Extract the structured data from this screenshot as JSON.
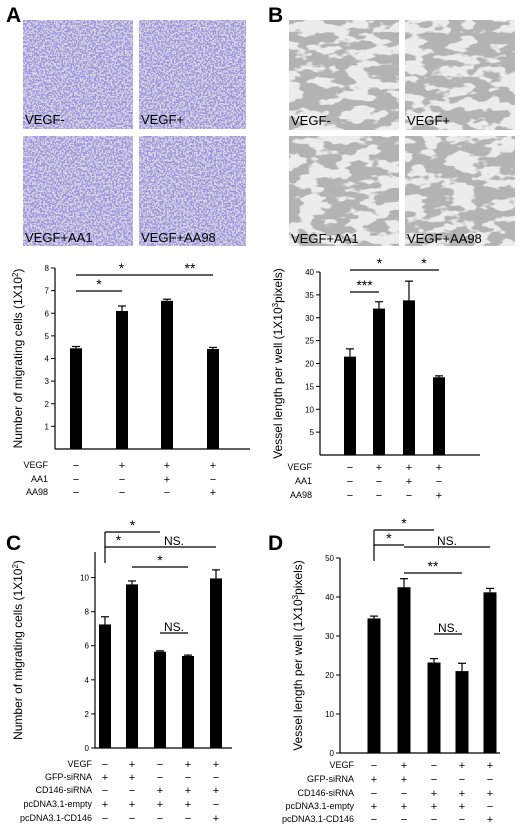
{
  "panels": {
    "A": {
      "letter": "A",
      "micrographs": [
        {
          "label": "VEGF-"
        },
        {
          "label": "VEGF+"
        },
        {
          "label": "VEGF+AA1"
        },
        {
          "label": "VEGF+AA98"
        }
      ],
      "ylabel": "Number of migrating cells (1X10",
      "ylabel_sup": "2",
      "ylabel_close": ")",
      "rows": [
        {
          "name": "VEGF",
          "signs": [
            "−",
            "+",
            "+",
            "+"
          ]
        },
        {
          "name": "AA1",
          "signs": [
            "−",
            "−",
            "+",
            "−"
          ]
        },
        {
          "name": "AA98",
          "signs": [
            "−",
            "−",
            "−",
            "+"
          ]
        }
      ],
      "sig": [
        {
          "text": "*",
          "from": 1,
          "to": 2
        },
        {
          "text": "*",
          "from": 1,
          "to": 3
        },
        {
          "text": "**",
          "from": 3,
          "to": 4
        }
      ]
    },
    "B": {
      "letter": "B",
      "micrographs": [
        {
          "label": "VEGF-"
        },
        {
          "label": "VEGF+"
        },
        {
          "label": "VEGF+AA1"
        },
        {
          "label": "VEGF+AA98"
        }
      ],
      "ylabel": "Vessel length per well (1X10",
      "ylabel_sup": "3",
      "ylabel_close": "pixels)",
      "rows": [
        {
          "name": "VEGF",
          "signs": [
            "−",
            "+",
            "+",
            "+"
          ]
        },
        {
          "name": "AA1",
          "signs": [
            "−",
            "−",
            "+",
            "−"
          ]
        },
        {
          "name": "AA98",
          "signs": [
            "−",
            "−",
            "−",
            "+"
          ]
        }
      ],
      "sig": [
        {
          "text": "***",
          "from": 1,
          "to": 2
        },
        {
          "text": "*",
          "from": 1,
          "to": 3
        },
        {
          "text": "*",
          "from": 3,
          "to": 4
        }
      ]
    },
    "C": {
      "letter": "C",
      "ylabel": "Number of migrating cells (1X10",
      "ylabel_sup": "2",
      "ylabel_close": ")",
      "rows": [
        {
          "name": "VEGF",
          "signs": [
            "−",
            "+",
            "−",
            "+",
            "+"
          ]
        },
        {
          "name": "GFP-siRNA",
          "signs": [
            "+",
            "+",
            "−",
            "−",
            "−"
          ]
        },
        {
          "name": "CD146-siRNA",
          "signs": [
            "−",
            "−",
            "+",
            "+",
            "+"
          ]
        },
        {
          "name": "pcDNA3.1-empty",
          "signs": [
            "+",
            "+",
            "+",
            "+",
            "−"
          ]
        },
        {
          "name": "pcDNA3.1-CD146",
          "signs": [
            "−",
            "−",
            "−",
            "−",
            "+"
          ]
        }
      ],
      "sig": [
        {
          "text": "*",
          "from": 1,
          "to": 2
        },
        {
          "text": "*",
          "from": 1,
          "to": 3
        },
        {
          "text": "*",
          "from": 2,
          "to": 4
        },
        {
          "text": "NS.",
          "from": 2,
          "to": 5
        },
        {
          "text": "NS.",
          "from": 3,
          "to": 4
        }
      ]
    },
    "D": {
      "letter": "D",
      "ylabel": "Vessel length per well (1X10",
      "ylabel_sup": "3",
      "ylabel_close": "pixels)",
      "rows": [
        {
          "name": "VEGF",
          "signs": [
            "−",
            "+",
            "−",
            "+",
            "+"
          ]
        },
        {
          "name": "GFP-siRNA",
          "signs": [
            "+",
            "+",
            "−",
            "−",
            "−"
          ]
        },
        {
          "name": "CD146-siRNA",
          "signs": [
            "−",
            "−",
            "+",
            "+",
            "+"
          ]
        },
        {
          "name": "pcDNA3.1-empty",
          "signs": [
            "+",
            "+",
            "+",
            "+",
            "−"
          ]
        },
        {
          "name": "pcDNA3.1-CD146",
          "signs": [
            "−",
            "−",
            "−",
            "−",
            "+"
          ]
        }
      ],
      "sig": [
        {
          "text": "*",
          "from": 1,
          "to": 2
        },
        {
          "text": "*",
          "from": 1,
          "to": 3
        },
        {
          "text": "**",
          "from": 2,
          "to": 4
        },
        {
          "text": "NS.",
          "from": 2,
          "to": 5
        },
        {
          "text": "NS.",
          "from": 3,
          "to": 4
        }
      ]
    }
  },
  "chart_data": [
    {
      "panel": "A",
      "type": "bar",
      "values": [
        4.45,
        6.1,
        6.55,
        4.42
      ],
      "errors": [
        0.08,
        0.22,
        0.07,
        0.07
      ],
      "ylim": [
        0,
        8
      ],
      "yticks": [
        1,
        2,
        3,
        4,
        5,
        6,
        7,
        8
      ],
      "ylabel": "Number of migrating cells (1X10^2)"
    },
    {
      "panel": "B",
      "type": "bar",
      "values": [
        21.5,
        32,
        33.8,
        17
      ],
      "errors": [
        1.7,
        1.5,
        4.2,
        0.3
      ],
      "ylim": [
        0,
        40
      ],
      "yticks": [
        5,
        10,
        15,
        20,
        25,
        30,
        35,
        40
      ],
      "ylabel": "Vessel length per well (1X10^3pixels)"
    },
    {
      "panel": "C",
      "type": "bar",
      "values": [
        7.25,
        9.6,
        5.65,
        5.4,
        9.95
      ],
      "errors": [
        0.45,
        0.2,
        0.05,
        0.05,
        0.5
      ],
      "ylim": [
        0,
        11.5
      ],
      "yticks": [
        0,
        2,
        4,
        6,
        8,
        10
      ],
      "ylabel": "Number of migrating cells (1X10^2)"
    },
    {
      "panel": "D",
      "type": "bar",
      "values": [
        34.5,
        42.5,
        23.2,
        21,
        41.2
      ],
      "errors": [
        0.6,
        2.2,
        1,
        2,
        1
      ],
      "ylim": [
        0,
        50
      ],
      "yticks": [
        0,
        10,
        20,
        30,
        40,
        50
      ],
      "ylabel": "Vessel length per well (1X10^3pixels)"
    }
  ]
}
